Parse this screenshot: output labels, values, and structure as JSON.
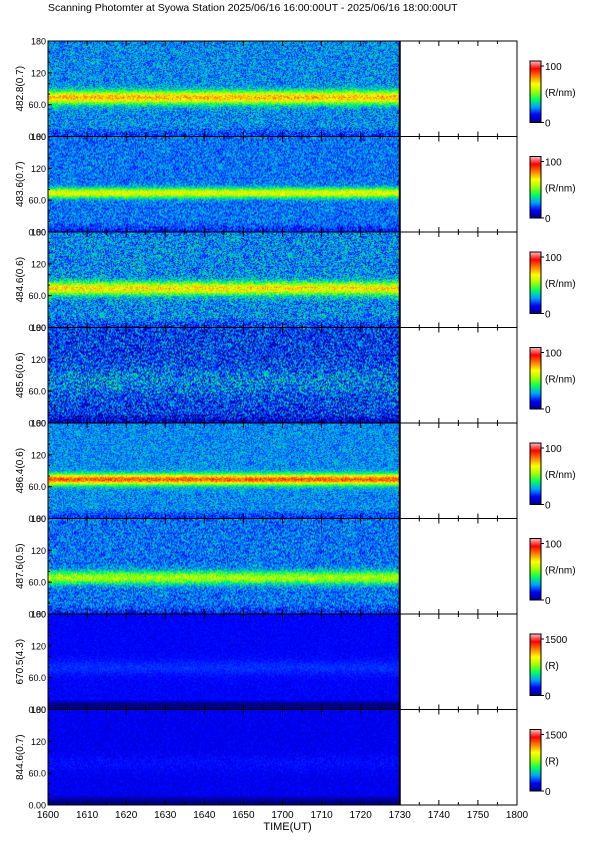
{
  "title": "Scanning Photomter at Syowa Station 2025/06/16 16:00:00UT - 2025/06/16 18:00:00UT",
  "xlabel": "TIME(UT)",
  "chart_data": {
    "type": "heatmap",
    "title": "Scanning Photomter at Syowa Station 2025/06/16 16:00:00UT - 2025/06/16 18:00:00UT",
    "xlabel": "TIME(UT)",
    "x_ticks": [
      "1600",
      "1610",
      "1620",
      "1630",
      "1640",
      "1650",
      "1700",
      "1710",
      "1720",
      "1730",
      "1740",
      "1750",
      "1800"
    ],
    "x_range_minutes": [
      0,
      120
    ],
    "data_end_minutes": 90,
    "colormap": [
      "#000080",
      "#0000ff",
      "#00a0ff",
      "#00ff60",
      "#a0ff00",
      "#ffff00",
      "#ff8000",
      "#ff0000",
      "#ffc0c0"
    ],
    "panels": [
      {
        "ylabel": "482.8(0.7)",
        "yticks": [
          "0.00",
          "60.0",
          "120",
          "180"
        ],
        "ylim": [
          0,
          180
        ],
        "cbar_ticks": [
          "0",
          "100"
        ],
        "cbar_label": "(R/nm)",
        "cbar_max": 100,
        "background": 0.24,
        "band_center": 75,
        "band_width": 12,
        "band_peak": 0.45,
        "noise": 0.22,
        "bottom_dark": 0.1
      },
      {
        "ylabel": "483.6(0.7)",
        "yticks": [
          "0.00",
          "60.0",
          "120",
          "180"
        ],
        "ylim": [
          0,
          180
        ],
        "cbar_ticks": [
          "0",
          "100"
        ],
        "cbar_label": "(R/nm)",
        "cbar_max": 100,
        "background": 0.22,
        "band_center": 75,
        "band_width": 9,
        "band_peak": 0.38,
        "noise": 0.2,
        "bottom_dark": 0.1
      },
      {
        "ylabel": "484.6(0.6)",
        "yticks": [
          "0.00",
          "60.0",
          "120",
          "180"
        ],
        "ylim": [
          0,
          180
        ],
        "cbar_ticks": [
          "0",
          "100"
        ],
        "cbar_label": "(R/nm)",
        "cbar_max": 100,
        "background": 0.24,
        "band_center": 75,
        "band_width": 12,
        "band_peak": 0.4,
        "noise": 0.26,
        "bottom_dark": 0.1
      },
      {
        "ylabel": "485.6(0.6)",
        "yticks": [
          "0.00",
          "60.0",
          "120",
          "180"
        ],
        "ylim": [
          0,
          180
        ],
        "cbar_ticks": [
          "0",
          "100"
        ],
        "cbar_label": "(R/nm)",
        "cbar_max": 100,
        "background": 0.16,
        "band_center": 80,
        "band_width": 25,
        "band_peak": 0.08,
        "noise": 0.34,
        "bottom_dark": 0.15
      },
      {
        "ylabel": "486.4(0.6)",
        "yticks": [
          "0.00",
          "60.0",
          "120",
          "180"
        ],
        "ylim": [
          0,
          180
        ],
        "cbar_ticks": [
          "0",
          "100"
        ],
        "cbar_label": "(R/nm)",
        "cbar_max": 100,
        "background": 0.24,
        "band_center": 75,
        "band_width": 10,
        "band_peak": 0.55,
        "noise": 0.18,
        "bottom_dark": 0.1
      },
      {
        "ylabel": "487.6(0.5)",
        "yticks": [
          "0.00",
          "60.0",
          "120",
          "180"
        ],
        "ylim": [
          0,
          180
        ],
        "cbar_ticks": [
          "0",
          "100"
        ],
        "cbar_label": "(R/nm)",
        "cbar_max": 100,
        "background": 0.22,
        "band_center": 70,
        "band_width": 12,
        "band_peak": 0.3,
        "noise": 0.22,
        "bottom_dark": 0.1
      },
      {
        "ylabel": "670.5(4.3)",
        "yticks": [
          "0.00",
          "60.0",
          "120",
          "180"
        ],
        "ylim": [
          0,
          180
        ],
        "cbar_ticks": [
          "0",
          "1500"
        ],
        "cbar_label": "(R)",
        "cbar_max": 1500,
        "background": 0.12,
        "band_center": 80,
        "band_width": 15,
        "band_peak": 0.04,
        "noise": 0.05,
        "bottom_dark": 0.3
      },
      {
        "ylabel": "844.6(0.7)",
        "yticks": [
          "0.00",
          "60.0",
          "120",
          "180"
        ],
        "ylim": [
          0,
          180
        ],
        "cbar_ticks": [
          "0",
          "1500"
        ],
        "cbar_label": "(R)",
        "cbar_max": 1500,
        "background": 0.11,
        "band_center": 80,
        "band_width": 15,
        "band_peak": 0.02,
        "noise": 0.06,
        "bottom_dark": 0.2
      }
    ]
  }
}
